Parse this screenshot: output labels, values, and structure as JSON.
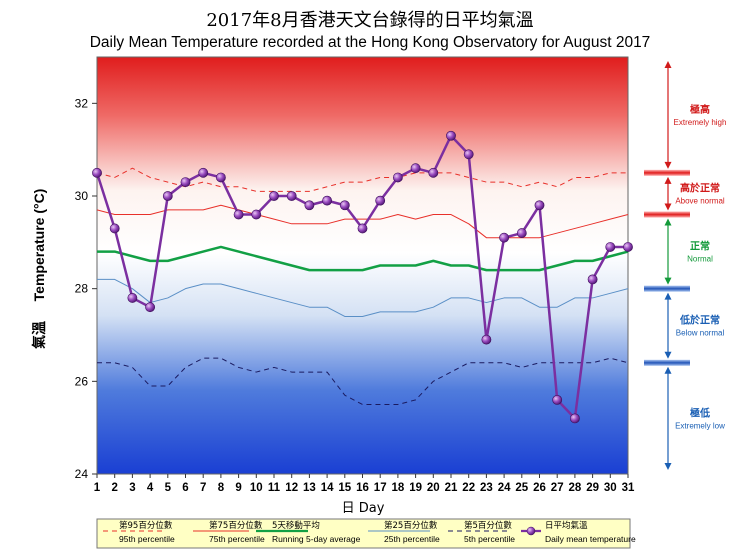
{
  "chart_data": {
    "type": "line",
    "title": "2017年8月香港天文台錄得的日平均氣溫",
    "subtitle": "Daily Mean Temperature recorded at the Hong Kong Observatory for August 2017",
    "xlabel": "日 Day",
    "ylabel_zh": "氣溫",
    "ylabel_en": "Temperature (°C)",
    "xlim": [
      1,
      31
    ],
    "ylim": [
      24,
      33
    ],
    "x": [
      1,
      2,
      3,
      4,
      5,
      6,
      7,
      8,
      9,
      10,
      11,
      12,
      13,
      14,
      15,
      16,
      17,
      18,
      19,
      20,
      21,
      22,
      23,
      24,
      25,
      26,
      27,
      28,
      29,
      30,
      31
    ],
    "x_ticks": [
      "1",
      "2",
      "3",
      "4",
      "5",
      "6",
      "7",
      "8",
      "9",
      "10",
      "11",
      "12",
      "13",
      "14",
      "15",
      "16",
      "17",
      "18",
      "19",
      "20",
      "21",
      "22",
      "23",
      "24",
      "25",
      "26",
      "27",
      "28",
      "29",
      "30",
      "31"
    ],
    "y_ticks": [
      "24",
      "26",
      "28",
      "30",
      "32"
    ],
    "series": [
      {
        "key": "p95",
        "name_zh": "第95百分位數",
        "name_en": "95th percentile",
        "color": "#e8302a",
        "dash": "5,4",
        "width": 1,
        "values": [
          30.5,
          30.4,
          30.6,
          30.4,
          30.3,
          30.2,
          30.3,
          30.2,
          30.2,
          30.1,
          30.1,
          30.1,
          30.1,
          30.2,
          30.3,
          30.3,
          30.4,
          30.4,
          30.5,
          30.5,
          30.5,
          30.4,
          30.3,
          30.3,
          30.2,
          30.3,
          30.2,
          30.4,
          30.4,
          30.5,
          30.5
        ]
      },
      {
        "key": "p75",
        "name_zh": "第75百分位數",
        "name_en": "75th percentile",
        "color": "#e8302a",
        "dash": "",
        "width": 1,
        "values": [
          29.7,
          29.6,
          29.6,
          29.6,
          29.7,
          29.7,
          29.7,
          29.8,
          29.7,
          29.6,
          29.5,
          29.4,
          29.4,
          29.4,
          29.5,
          29.5,
          29.5,
          29.6,
          29.5,
          29.6,
          29.6,
          29.4,
          29.1,
          29.1,
          29.1,
          29.1,
          29.2,
          29.3,
          29.4,
          29.5,
          29.6
        ]
      },
      {
        "key": "run5",
        "name_zh": "5天移動平均",
        "name_en": "Running 5-day average",
        "color": "#12a045",
        "dash": "",
        "width": 2.5,
        "values": [
          28.8,
          28.8,
          28.7,
          28.6,
          28.6,
          28.7,
          28.8,
          28.9,
          28.8,
          28.7,
          28.6,
          28.5,
          28.4,
          28.4,
          28.4,
          28.4,
          28.5,
          28.5,
          28.5,
          28.6,
          28.5,
          28.5,
          28.4,
          28.4,
          28.4,
          28.4,
          28.5,
          28.6,
          28.6,
          28.7,
          28.8
        ]
      },
      {
        "key": "p25",
        "name_zh": "第25百分位數",
        "name_en": "25th percentile",
        "color": "#5a8fc6",
        "dash": "",
        "width": 1,
        "values": [
          28.2,
          28.2,
          28.0,
          27.7,
          27.8,
          28.0,
          28.1,
          28.1,
          28.0,
          27.9,
          27.8,
          27.7,
          27.6,
          27.6,
          27.4,
          27.4,
          27.5,
          27.5,
          27.5,
          27.6,
          27.8,
          27.8,
          27.7,
          27.8,
          27.8,
          27.6,
          27.6,
          27.8,
          27.8,
          27.9,
          28.0
        ]
      },
      {
        "key": "p5",
        "name_zh": "第5百分位數",
        "name_en": "5th percentile",
        "color": "#1a1a60",
        "dash": "5,4",
        "width": 1,
        "values": [
          26.4,
          26.4,
          26.3,
          25.9,
          25.9,
          26.3,
          26.5,
          26.5,
          26.3,
          26.2,
          26.3,
          26.2,
          26.2,
          26.2,
          25.7,
          25.5,
          25.5,
          25.5,
          25.6,
          26.0,
          26.2,
          26.4,
          26.4,
          26.4,
          26.3,
          26.4,
          26.4,
          26.4,
          26.4,
          26.5,
          26.4
        ]
      },
      {
        "key": "daily",
        "name_zh": "日平均氣溫",
        "name_en": "Daily mean temperature",
        "color": "#7b2fa0",
        "dash": "",
        "width": 2.5,
        "values": [
          30.5,
          29.3,
          27.8,
          27.6,
          30.0,
          30.3,
          30.5,
          30.4,
          29.6,
          29.6,
          30.0,
          30.0,
          29.8,
          29.9,
          29.8,
          29.3,
          29.9,
          30.4,
          30.6,
          30.5,
          31.3,
          30.9,
          26.9,
          29.1,
          29.2,
          29.8,
          25.6,
          25.2,
          28.2,
          28.9,
          28.9
        ]
      }
    ],
    "categories_right": [
      {
        "zh": "極高",
        "en": "Extremely high",
        "color": "#d11a1a"
      },
      {
        "zh": "高於正常",
        "en": "Above normal",
        "color": "#d11a1a"
      },
      {
        "zh": "正常",
        "en": "Normal",
        "color": "#139a3a"
      },
      {
        "zh": "低於正常",
        "en": "Below normal",
        "color": "#1a5fb4"
      },
      {
        "zh": "極低",
        "en": "Extremely low",
        "color": "#1a5fb4"
      }
    ],
    "legend_placement": "bottom",
    "grid": false
  }
}
